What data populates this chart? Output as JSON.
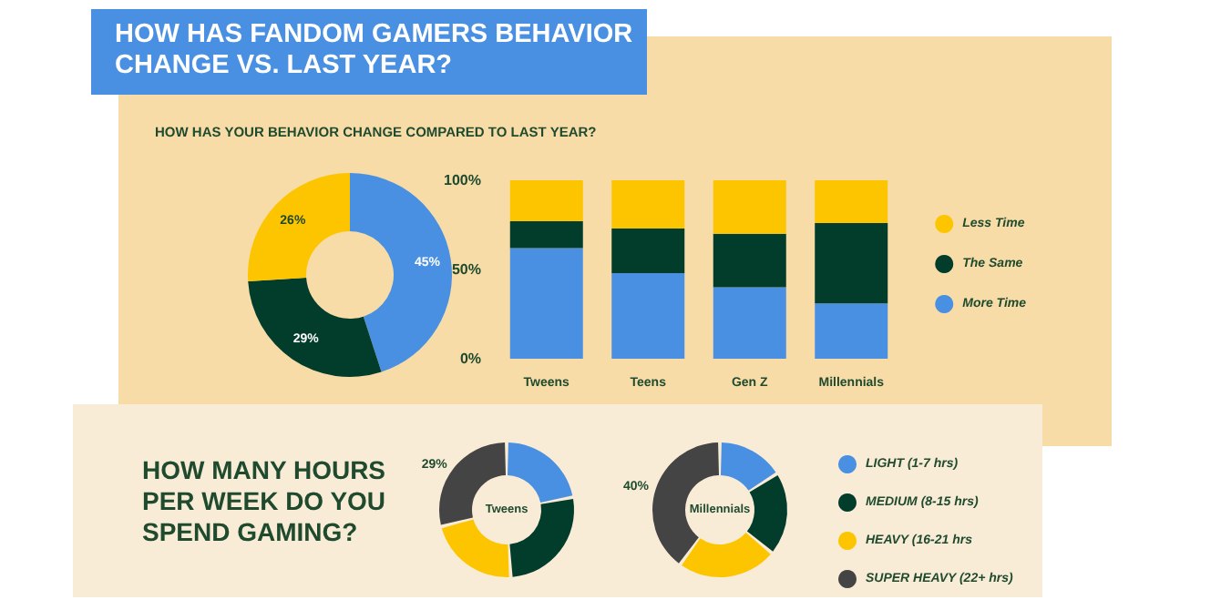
{
  "chart_data": [
    {
      "type": "donut",
      "title": "HOW HAS FANDOM GAMERS BEHAVIOR CHANGE VS. LAST YEAR?",
      "subtitle": "HOW HAS YOUR BEHAVIOR CHANGE COMPARED TO LAST YEAR?",
      "categories": [
        null,
        null,
        null
      ],
      "values": [
        45,
        29,
        26
      ],
      "colors": [
        "#4a90e2",
        "#023d2b",
        "#fdc500"
      ],
      "value_labels": [
        "45%",
        "29%",
        "26%"
      ]
    },
    {
      "type": "bar",
      "stacked": true,
      "categories": [
        "Tweens",
        "Teens",
        "Gen Z",
        "Millennials"
      ],
      "series": [
        {
          "name": "More Time",
          "color": "#4a90e2",
          "values": [
            62,
            48,
            40,
            31
          ]
        },
        {
          "name": "The Same",
          "color": "#023d2b",
          "values": [
            15,
            25,
            30,
            45
          ]
        },
        {
          "name": "Less Time",
          "color": "#fdc500",
          "values": [
            23,
            27,
            30,
            24
          ]
        }
      ],
      "ylim": [
        0,
        100
      ],
      "yticks": [
        {
          "value": 0,
          "label": "0%"
        },
        {
          "value": 50,
          "label": "50%"
        },
        {
          "value": 100,
          "label": "100%"
        }
      ],
      "legend": "right"
    },
    {
      "type": "donut",
      "title": "HOW MANY HOURS PER WEEK DO YOU SPEND GAMING?",
      "annotations": [
        "Tweens"
      ],
      "categories": [
        null,
        null,
        null,
        null
      ],
      "values": [
        22,
        27,
        22,
        29
      ],
      "colors": [
        "#4a90e2",
        "#023d2b",
        "#fdc500",
        "#444444"
      ],
      "value_labels": [
        null,
        null,
        null,
        "29%"
      ]
    },
    {
      "type": "donut",
      "annotations": [
        "Millennials"
      ],
      "categories": [
        "LIGHT (1-7 hrs)",
        "MEDIUM (8-15 hrs)",
        "HEAVY (16-21 hrs",
        "SUPER HEAVY (22+ hrs)"
      ],
      "values": [
        16,
        20,
        24,
        40
      ],
      "colors": [
        "#4a90e2",
        "#023d2b",
        "#fdc500",
        "#444444"
      ],
      "value_labels": [
        null,
        null,
        null,
        "40%"
      ],
      "legend": "right"
    }
  ]
}
